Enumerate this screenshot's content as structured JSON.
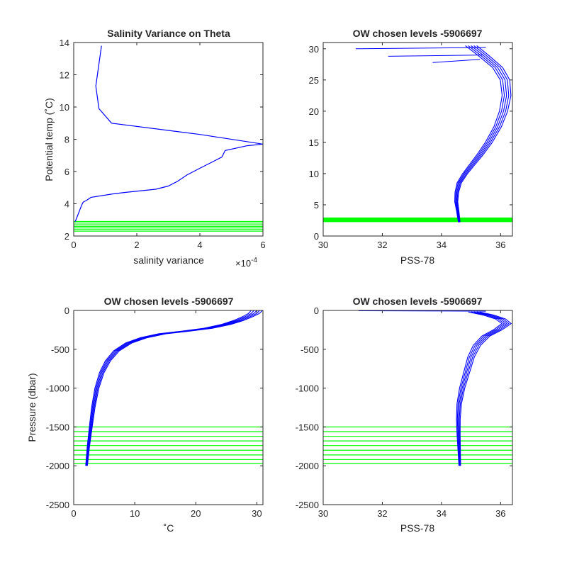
{
  "chart_data": [
    {
      "type": "line",
      "title": "Salinity Variance on Theta",
      "xlabel": "salinity variance",
      "ylabel": "Potential temp (˚C)",
      "x_exponent": "×10",
      "x_exponent_power": "-4",
      "xlim": [
        0,
        6
      ],
      "ylim": [
        2,
        14
      ],
      "xticks": [
        0,
        2,
        4,
        6
      ],
      "yticks": [
        2,
        4,
        6,
        8,
        10,
        12,
        14
      ],
      "colors": {
        "profile": "#0000ff",
        "levels": "#00ff00"
      },
      "series": [
        {
          "x": [
            0.88,
            0.7,
            0.8,
            1.2,
            4.0,
            6.0,
            5.5,
            4.8,
            4.7,
            4.3,
            4.0,
            3.6,
            3.3,
            3.0,
            2.6,
            1.6,
            1.2,
            0.55,
            0.4,
            0.3,
            0.25,
            0.15,
            0.05
          ],
          "y": [
            13.8,
            11.3,
            9.9,
            9.0,
            8.3,
            7.7,
            7.6,
            7.3,
            6.9,
            6.5,
            6.2,
            5.8,
            5.4,
            5.1,
            4.9,
            4.7,
            4.6,
            4.4,
            4.2,
            4.1,
            3.9,
            3.4,
            2.9
          ]
        }
      ],
      "levels_y": [
        2.3,
        2.4,
        2.5,
        2.6,
        2.7,
        2.8,
        2.9
      ]
    },
    {
      "type": "line",
      "title": "OW chosen levels -5906697",
      "xlabel": "PSS-78",
      "ylabel": "",
      "xlim": [
        30,
        36.4
      ],
      "ylim": [
        0,
        31
      ],
      "xticks": [
        30,
        32,
        34,
        36
      ],
      "yticks": [
        0,
        5,
        10,
        15,
        20,
        25,
        30
      ],
      "colors": {
        "profile": "#0000ff",
        "levels": "#00ff00"
      },
      "series": [
        {
          "x": [
            34.6,
            34.55,
            34.5,
            34.52,
            34.6,
            34.8,
            35.05,
            35.3,
            35.6,
            35.9,
            36.1,
            36.2,
            36.15,
            35.9,
            35.4,
            35.0
          ],
          "y": [
            2.2,
            4.0,
            5.5,
            7.0,
            8.5,
            10.0,
            11.5,
            13.0,
            15.0,
            17.5,
            20.0,
            22.5,
            25.0,
            27.0,
            29.0,
            30.5
          ]
        }
      ],
      "spikes": [
        {
          "x": [
            31.1,
            35.5
          ],
          "y": [
            30.0,
            30.2
          ]
        },
        {
          "x": [
            32.2,
            35.4
          ],
          "y": [
            28.8,
            29.0
          ]
        },
        {
          "x": [
            33.7,
            35.3
          ],
          "y": [
            27.8,
            28.3
          ]
        }
      ],
      "levels_y": [
        2.3,
        2.4,
        2.5,
        2.6,
        2.7,
        2.8,
        2.9
      ]
    },
    {
      "type": "line",
      "title": "OW chosen levels -5906697",
      "xlabel": "˚C",
      "ylabel": "Pressure (dbar)",
      "xlim": [
        0,
        31
      ],
      "ylim": [
        -2500,
        0
      ],
      "xticks": [
        0,
        10,
        20,
        30
      ],
      "yticks": [
        -2500,
        -2000,
        -1500,
        -1000,
        -500,
        0
      ],
      "colors": {
        "profile": "#0000ff",
        "levels": "#00ff00"
      },
      "series": [
        {
          "x": [
            2.1,
            2.4,
            2.8,
            3.2,
            3.8,
            4.6,
            5.6,
            7.0,
            9.0,
            11.5,
            14.5,
            18.0,
            22.0,
            25.0,
            27.0,
            28.5,
            29.5,
            30.0
          ],
          "y": [
            -2000,
            -1750,
            -1500,
            -1250,
            -1000,
            -800,
            -650,
            -520,
            -420,
            -350,
            -300,
            -270,
            -230,
            -180,
            -130,
            -80,
            -40,
            0
          ]
        }
      ],
      "levels_y": [
        -1500,
        -1560,
        -1620,
        -1680,
        -1740,
        -1800,
        -1860,
        -1920,
        -1970
      ]
    },
    {
      "type": "line",
      "title": "OW chosen levels -5906697",
      "xlabel": "PSS-78",
      "ylabel": "",
      "xlim": [
        30,
        36.4
      ],
      "ylim": [
        -2500,
        0
      ],
      "xticks": [
        30,
        32,
        34,
        36
      ],
      "yticks": [
        -2500,
        -2000,
        -1500,
        -1000,
        -500,
        0
      ],
      "colors": {
        "profile": "#0000ff",
        "levels": "#00ff00"
      },
      "series": [
        {
          "x": [
            34.62,
            34.6,
            34.58,
            34.57,
            34.6,
            34.7,
            34.85,
            35.0,
            35.2,
            35.5,
            35.9,
            36.2,
            36.0,
            35.6,
            35.1
          ],
          "y": [
            -2000,
            -1800,
            -1600,
            -1400,
            -1200,
            -1000,
            -800,
            -600,
            -450,
            -330,
            -250,
            -170,
            -110,
            -60,
            -20
          ]
        }
      ],
      "spikes": [
        {
          "x": [
            31.2,
            35.5
          ],
          "y": [
            -5,
            -10
          ]
        }
      ],
      "levels_y": [
        -1500,
        -1560,
        -1620,
        -1680,
        -1740,
        -1800,
        -1860,
        -1920,
        -1970
      ]
    }
  ]
}
